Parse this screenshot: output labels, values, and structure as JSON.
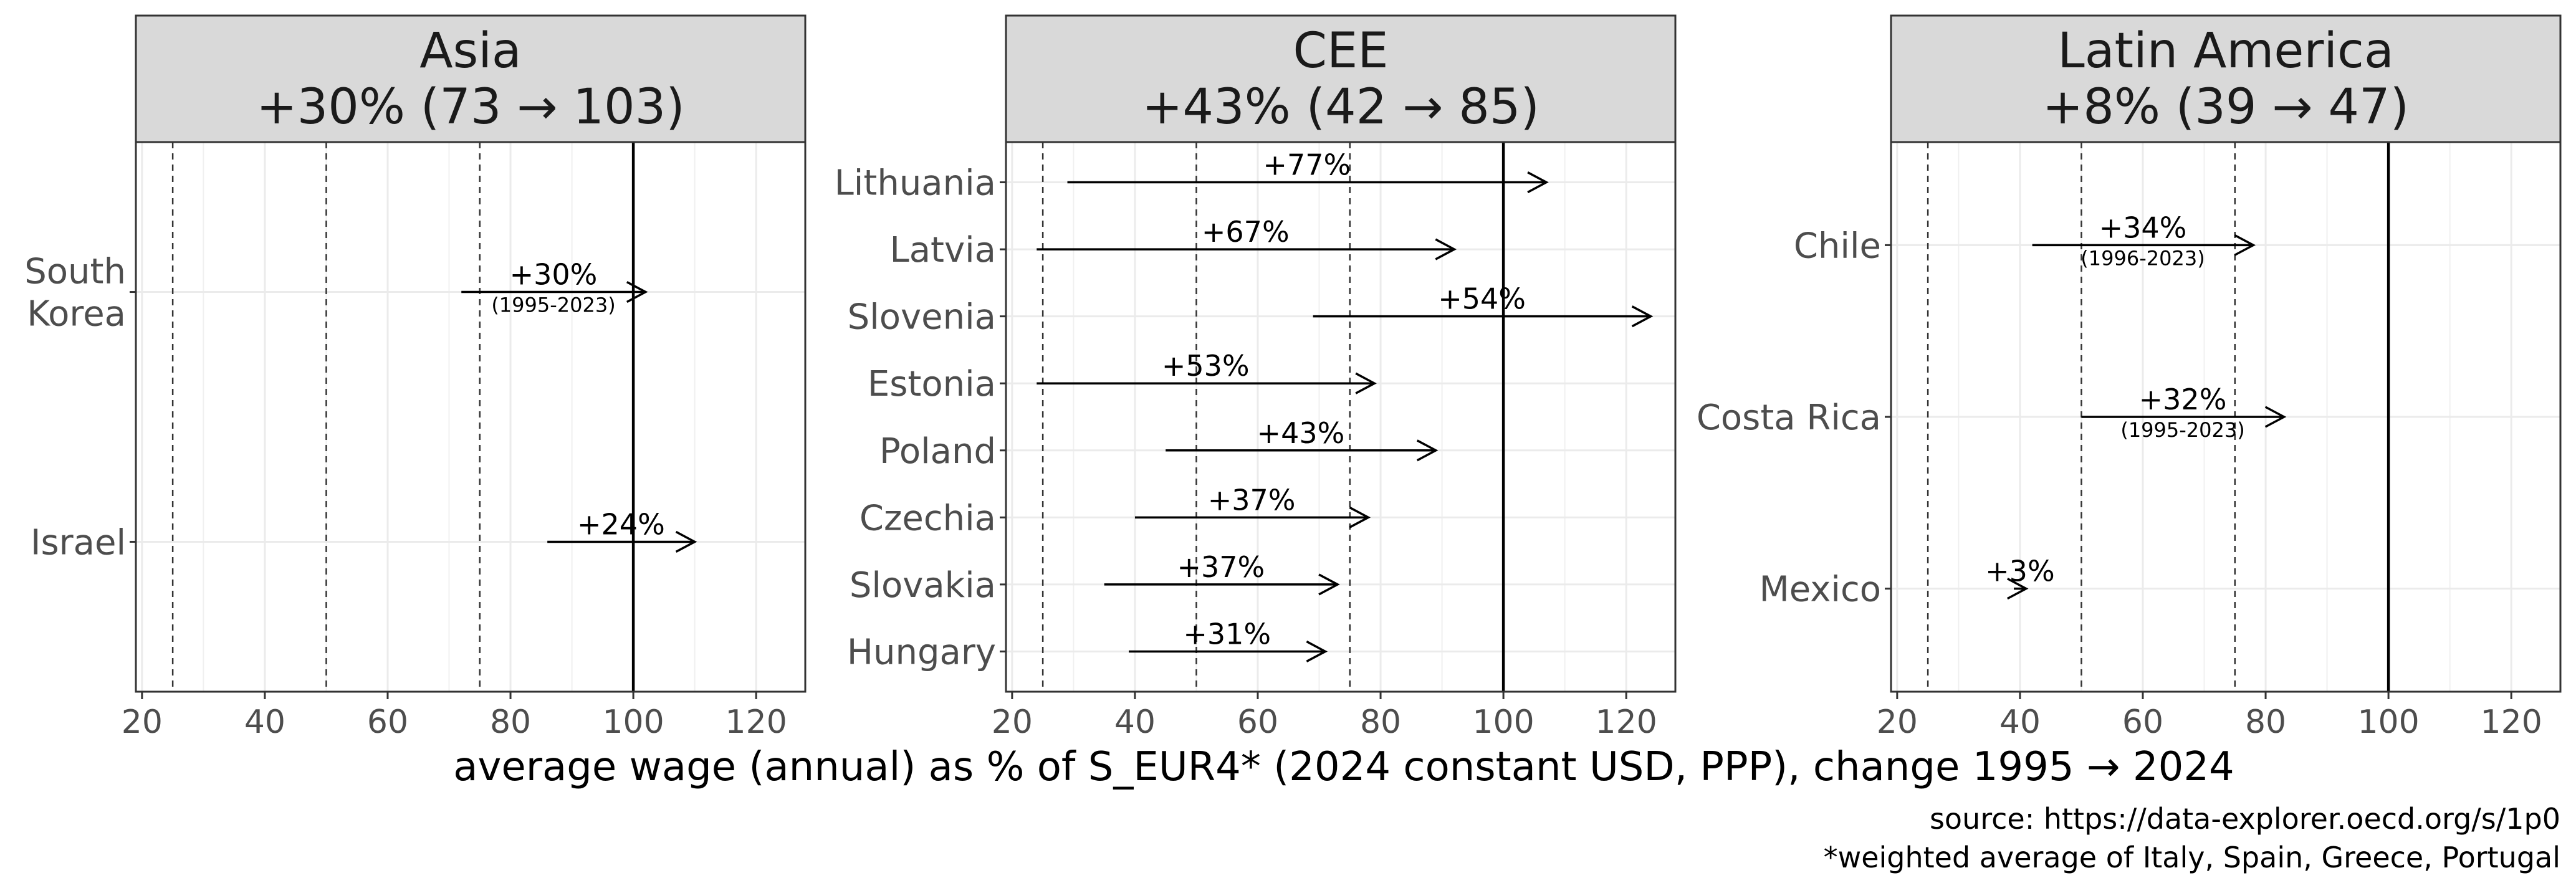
{
  "chart_data": {
    "type": "dumbbell-arrow",
    "xlabel": "average wage (annual) as % of S_EUR4* (2024 constant USD, PPP), change 1995 → 2024",
    "caption": [
      "source: https://data-explorer.oecd.org/s/1p0",
      "*weighted average of Italy, Spain, Greece, Portugal"
    ],
    "xlim": [
      19,
      128
    ],
    "xticks": [
      20,
      40,
      60,
      80,
      100,
      120
    ],
    "reference_lines": {
      "dashed": [
        25,
        50,
        75
      ],
      "solid": [
        100
      ]
    },
    "grid": true,
    "panels": [
      {
        "title_line1": "Asia",
        "title_line2": "+30% (73 → 103)",
        "rows": [
          {
            "label": "South\nKorea",
            "start": 72,
            "end": 102,
            "pct": "+30%",
            "years": "(1995-2023)"
          },
          {
            "label": "Israel",
            "start": 86,
            "end": 110,
            "pct": "+24%",
            "years": ""
          }
        ]
      },
      {
        "title_line1": "CEE",
        "title_line2": "+43% (42 → 85)",
        "rows": [
          {
            "label": "Lithuania",
            "start": 29,
            "end": 107,
            "pct": "+77%",
            "years": ""
          },
          {
            "label": "Latvia",
            "start": 24,
            "end": 92,
            "pct": "+67%",
            "years": ""
          },
          {
            "label": "Slovenia",
            "start": 69,
            "end": 124,
            "pct": "+54%",
            "years": ""
          },
          {
            "label": "Estonia",
            "start": 24,
            "end": 79,
            "pct": "+53%",
            "years": ""
          },
          {
            "label": "Poland",
            "start": 45,
            "end": 89,
            "pct": "+43%",
            "years": ""
          },
          {
            "label": "Czechia",
            "start": 40,
            "end": 78,
            "pct": "+37%",
            "years": ""
          },
          {
            "label": "Slovakia",
            "start": 35,
            "end": 73,
            "pct": "+37%",
            "years": ""
          },
          {
            "label": "Hungary",
            "start": 39,
            "end": 71,
            "pct": "+31%",
            "years": ""
          }
        ]
      },
      {
        "title_line1": "Latin America",
        "title_line2": "+8% (39 → 47)",
        "rows": [
          {
            "label": "Chile",
            "start": 42,
            "end": 78,
            "pct": "+34%",
            "years": "(1996-2023)"
          },
          {
            "label": "Costa Rica",
            "start": 50,
            "end": 83,
            "pct": "+32%",
            "years": "(1995-2023)"
          },
          {
            "label": "Mexico",
            "start": 39,
            "end": 41,
            "pct": "+3%",
            "years": ""
          }
        ]
      }
    ]
  }
}
